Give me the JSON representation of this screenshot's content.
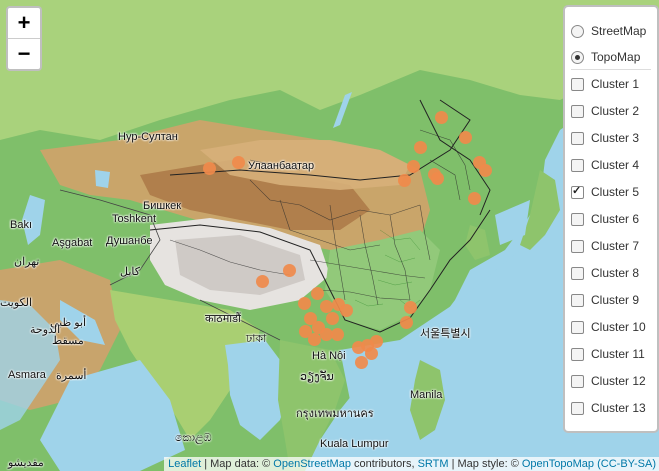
{
  "zoom": {
    "in_label": "+",
    "out_label": "−"
  },
  "base_layers": [
    {
      "label": "StreetMap",
      "selected": false
    },
    {
      "label": "TopoMap",
      "selected": true
    }
  ],
  "overlays": [
    {
      "label": "Cluster 1",
      "checked": false
    },
    {
      "label": "Cluster 2",
      "checked": false
    },
    {
      "label": "Cluster 3",
      "checked": false
    },
    {
      "label": "Cluster 4",
      "checked": false
    },
    {
      "label": "Cluster 5",
      "checked": true
    },
    {
      "label": "Cluster 6",
      "checked": false
    },
    {
      "label": "Cluster 7",
      "checked": false
    },
    {
      "label": "Cluster 8",
      "checked": false
    },
    {
      "label": "Cluster 9",
      "checked": false
    },
    {
      "label": "Cluster 10",
      "checked": false
    },
    {
      "label": "Cluster 11",
      "checked": false
    },
    {
      "label": "Cluster 12",
      "checked": false
    },
    {
      "label": "Cluster 13",
      "checked": false
    }
  ],
  "places": {
    "nur_sultan": "Нур-Султан",
    "ulaanbaatar": "Улаанбаатар",
    "bishkek": "Бишкек",
    "tashkent": "Toshkent",
    "dushanbe": "Душанбе",
    "ashgabat": "Aşgabat",
    "baku": "Bakı",
    "tehran": "تهران",
    "kabul": "کابل",
    "kathmandu": "काठमाडौं",
    "dhaka": "ঢাকা",
    "hanoi": "Hà Nội",
    "seoul": "서울특별시",
    "manila": "Manila",
    "kuala_lumpur": "Kuala Lumpur",
    "asmara": "Asmara",
    "asmara_ar": "أسمرة",
    "abu_dhabi": "أبو ظبي",
    "doha": "الدوحة",
    "muscat": "مسقط",
    "colombo": "කොළඹ",
    "bangkok": "กรุงเทพมหานคร",
    "vientiane": "ວຽງຈັນ",
    "mogadishu": "مقديشو",
    "kuwait": "الكويت"
  },
  "attribution": {
    "leaflet": "Leaflet",
    "text1": " | Map data: © ",
    "osm": "OpenStreetMap",
    "text2": " contributors, ",
    "srtm": "SRTM",
    "text3": " | Map style: © ",
    "otm": "OpenTopoMap",
    "text4": " ",
    "license": "(CC-BY-SA)"
  },
  "colors": {
    "marker": "#f08a4b"
  }
}
